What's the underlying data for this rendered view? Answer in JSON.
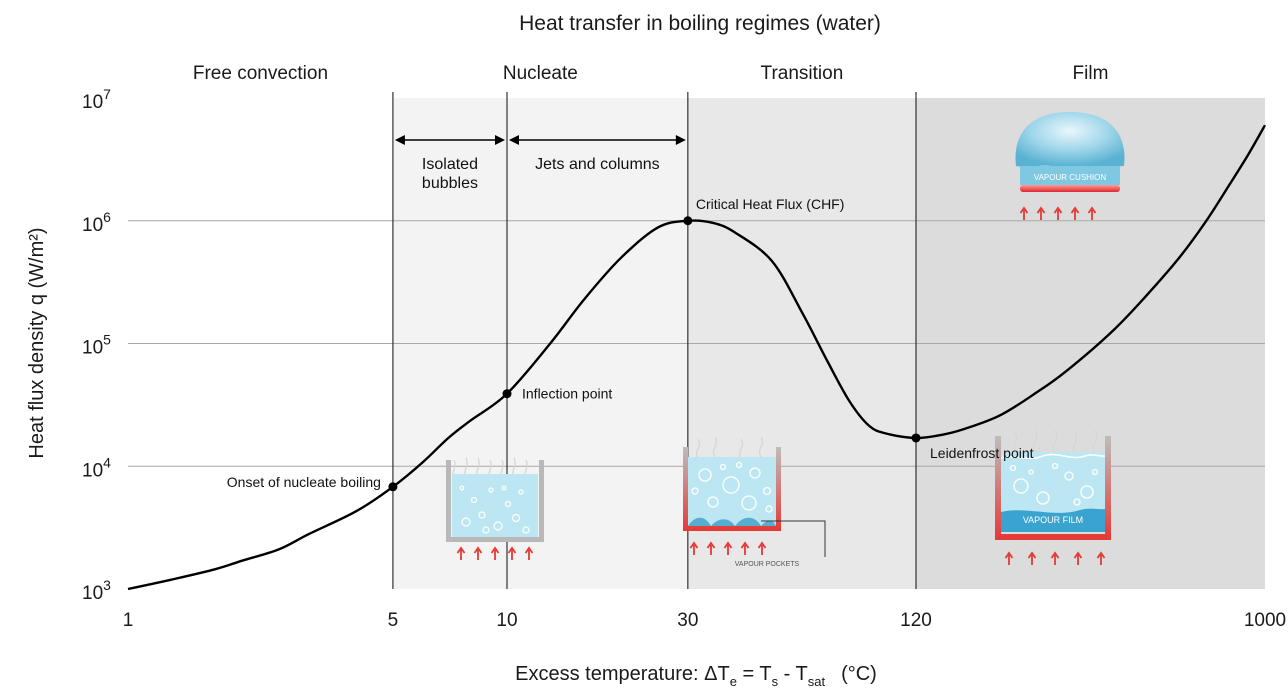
{
  "chart_data": {
    "type": "line",
    "title": "Heat transfer in boiling regimes (water)",
    "xlabel": {
      "prefix": "Excess temperature: ΔT",
      "sub_e": "e",
      "eq": " = T",
      "sub_s": "s",
      "minus": " - T",
      "sub_sat": "sat",
      "unit": "(°C)"
    },
    "ylabel": "Heat flux density q (W/m²)",
    "x_scale": "log",
    "y_scale": "log",
    "xlim": [
      1,
      1000
    ],
    "ylim": [
      1000,
      10000000
    ],
    "x_ticks": [
      {
        "value": 1,
        "label": "1"
      },
      {
        "value": 5,
        "label": "5"
      },
      {
        "value": 10,
        "label": "10"
      },
      {
        "value": 30,
        "label": "30"
      },
      {
        "value": 120,
        "label": "120"
      },
      {
        "value": 1000,
        "label": "1000"
      }
    ],
    "y_ticks": [
      {
        "value": 1000,
        "base": "10",
        "exp": "3"
      },
      {
        "value": 10000,
        "base": "10",
        "exp": "4"
      },
      {
        "value": 100000,
        "base": "10",
        "exp": "5"
      },
      {
        "value": 1000000,
        "base": "10",
        "exp": "6"
      },
      {
        "value": 10000000,
        "base": "10",
        "exp": "7"
      }
    ],
    "grid": {
      "horizontal": true,
      "vertical": false
    },
    "regions": [
      {
        "label": "Free convection",
        "from": 1,
        "to": 5,
        "shade": "#ffffff"
      },
      {
        "label": "Nucleate",
        "from": 5,
        "to": 30,
        "shade": "#f3f3f3"
      },
      {
        "label": "Transition",
        "from": 30,
        "to": 120,
        "shade": "#e8e8e8"
      },
      {
        "label": "Film",
        "from": 120,
        "to": 1000,
        "shade": "#dcdcdc"
      }
    ],
    "sub_regions": [
      {
        "label_lines": [
          "Isolated",
          "bubbles"
        ],
        "from": 5,
        "to": 10
      },
      {
        "label_lines": [
          "Jets and columns"
        ],
        "from": 10,
        "to": 30
      }
    ],
    "series": [
      {
        "points": [
          [
            1,
            1000
          ],
          [
            1.3,
            1190
          ],
          [
            1.7,
            1450
          ],
          [
            2,
            1700
          ],
          [
            2.5,
            2100
          ],
          [
            3,
            2800
          ],
          [
            4,
            4300
          ],
          [
            5,
            6800
          ],
          [
            6,
            10800
          ],
          [
            7,
            17000
          ],
          [
            8,
            23500
          ],
          [
            10,
            39000
          ],
          [
            13,
            100000
          ],
          [
            16,
            230000
          ],
          [
            20,
            500000
          ],
          [
            25,
            880000
          ],
          [
            30,
            1000000
          ],
          [
            35,
            960000
          ],
          [
            40,
            800000
          ],
          [
            50,
            470000
          ],
          [
            60,
            180000
          ],
          [
            70,
            72000
          ],
          [
            80,
            34000
          ],
          [
            90,
            21500
          ],
          [
            100,
            18500
          ],
          [
            120,
            17000
          ],
          [
            140,
            18000
          ],
          [
            160,
            20000
          ],
          [
            200,
            26000
          ],
          [
            250,
            40000
          ],
          [
            300,
            60000
          ],
          [
            400,
            130000
          ],
          [
            500,
            270000
          ],
          [
            600,
            520000
          ],
          [
            700,
            1000000
          ],
          [
            800,
            1900000
          ],
          [
            900,
            3400000
          ],
          [
            1000,
            6000000
          ]
        ]
      }
    ],
    "key_points": [
      {
        "label": "Onset of nucleate boiling",
        "x": 5,
        "y": 6800,
        "side": "left"
      },
      {
        "label": "Inflection point",
        "x": 10,
        "y": 39000,
        "side": "right"
      },
      {
        "label": "Critical Heat Flux (CHF)",
        "x": 30,
        "y": 1000000,
        "side": "right"
      },
      {
        "label": "Leidenfrost point",
        "x": 120,
        "y": 17000,
        "side": "right"
      }
    ],
    "illustration_labels": {
      "vapour_pockets": "VAPOUR POCKETS",
      "vapour_film": "VAPOUR FILM",
      "vapour_cushion": "VAPOUR CUSHION"
    },
    "colors": {
      "curve": "#000000",
      "water": "#bde6f3",
      "heater": "#e8353a",
      "arrow": "#e53935",
      "vessel": "#b8b8b8",
      "grid": "#a8a8a8"
    }
  }
}
